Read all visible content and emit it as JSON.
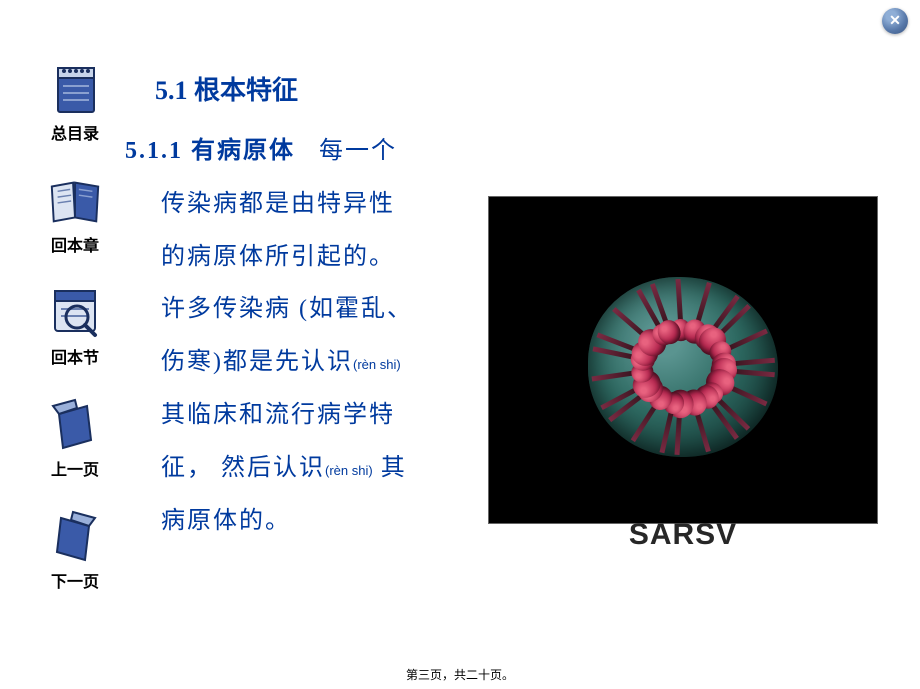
{
  "close_label": "✕",
  "nav": [
    {
      "label": "总目录"
    },
    {
      "label": "回本章"
    },
    {
      "label": "回本节"
    },
    {
      "label": "上一页"
    },
    {
      "label": "下一页"
    }
  ],
  "heading": "5.1 根本特征",
  "subsection": "5.1.1  有病原体",
  "lead": "每一个",
  "body_lines": [
    "传染病都是由特异性",
    "的病原体所引起的。",
    "许多传染病 (如霍乱、",
    "伤寒)都是先认识",
    "其临床和流行病学特",
    "征， 然后认识",
    "病原体的。"
  ],
  "pinyin1": "(rèn shi)",
  "pinyin2": "(rèn shi)",
  "line6_suffix": "其",
  "image": {
    "caption": "SARSV",
    "bg": "#000000",
    "core_color": "#2e6a62",
    "spike_color": "#b62850",
    "spike_count": 22
  },
  "footer": "第三页，共二十页。",
  "colors": {
    "text": "#003a9e",
    "nav_fill": "#3a5aa8",
    "nav_stroke": "#1a2f5e"
  }
}
